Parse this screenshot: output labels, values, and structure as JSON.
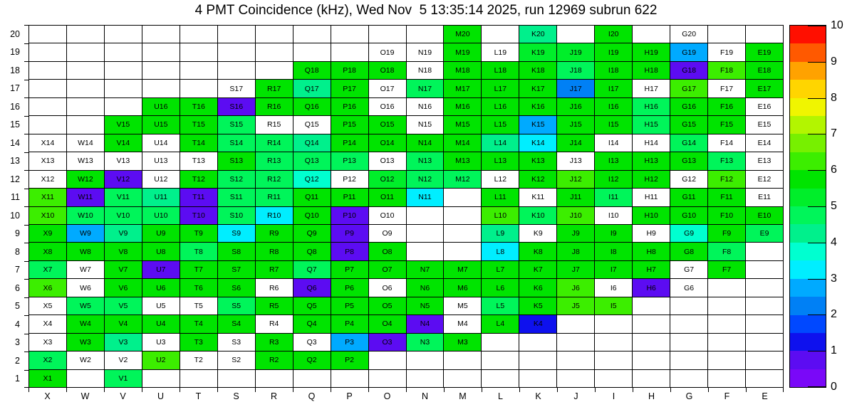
{
  "title": "4 PMT Coincidence (kHz), Wed Nov  5 13:35:14 2025, run 12969 subrun 622",
  "chart_data": {
    "type": "heatmap",
    "unit": "kHz",
    "zlim": [
      0,
      10
    ],
    "colorbar_ticks": [
      0,
      1,
      2,
      3,
      4,
      5,
      6,
      7,
      8,
      9,
      10
    ],
    "palette_note": "20 discrete bands, 0.5 kHz each, violet(0) to red(10)",
    "palette": [
      "#7a08f8",
      "#5c0cf2",
      "#0e11ee",
      "#0048ff",
      "#0080f5",
      "#00aaff",
      "#00eeff",
      "#00ffd0",
      "#00f08c",
      "#00f55a",
      "#00ee2a",
      "#00e400",
      "#3cee00",
      "#77f000",
      "#b3f500",
      "#f0f500",
      "#ffd500",
      "#ffa200",
      "#ff5900",
      "#ff0f00"
    ],
    "columns": [
      "X",
      "W",
      "V",
      "U",
      "T",
      "S",
      "R",
      "Q",
      "P",
      "O",
      "N",
      "M",
      "L",
      "K",
      "J",
      "I",
      "H",
      "G",
      "F",
      "E"
    ],
    "rows": [
      20,
      19,
      18,
      17,
      16,
      15,
      14,
      13,
      12,
      11,
      10,
      9,
      8,
      7,
      6,
      5,
      4,
      3,
      2,
      1
    ],
    "cell_format": "LABEL:VALUE = colored cell (kHz), LABEL = white cell with label, empty string = blank cell",
    "cells": [
      [
        "",
        "",
        "",
        "",
        "",
        "",
        "",
        "",
        "",
        "",
        "",
        "M20:5.75",
        "",
        "K20:4.25",
        "",
        "I20:5.75",
        "",
        "G20",
        "",
        ""
      ],
      [
        "",
        "",
        "",
        "",
        "",
        "",
        "",
        "",
        "",
        "O19",
        "N19",
        "M19:5.75",
        "L19",
        "K19:5.25",
        "J19:5.25",
        "I19:5.75",
        "H19:5.75",
        "G19:2.75",
        "F19",
        "E19:5.75"
      ],
      [
        "",
        "",
        "",
        "",
        "",
        "",
        "",
        "Q18:5.75",
        "P18:5.75",
        "O18:5.75",
        "N18",
        "M18:5.75",
        "L18:5.75",
        "K18:5.75",
        "J18:4.75",
        "I18:5.75",
        "H18:5.75",
        "G18:0.5",
        "F18:6.25",
        "E18:5.75"
      ],
      [
        "",
        "",
        "",
        "",
        "",
        "S17",
        "R17:5.75",
        "Q17:4.25",
        "P17:5.75",
        "O17",
        "N17:4.75",
        "M17:5.75",
        "L17:5.75",
        "K17:5.75",
        "J17:2.25",
        "I17:5.75",
        "H17",
        "G17:6.25",
        "F17",
        "E17:5.75"
      ],
      [
        "",
        "",
        "",
        "U16:5.75",
        "T16:5.75",
        "S16:0.5",
        "R16:5.75",
        "Q16:5.75",
        "P16:5.75",
        "O16",
        "N16",
        "M16:5.75",
        "L16:5.75",
        "K16:5.75",
        "J16:5.75",
        "I16:5.75",
        "H16:4.75",
        "G16:5.75",
        "F16:5.75",
        "E16"
      ],
      [
        "",
        "",
        "V15:5.75",
        "U15:5.75",
        "T15:5.75",
        "S15:4.75",
        "R15",
        "Q15",
        "P15:5.75",
        "O15:5.75",
        "N15",
        "M15:5.75",
        "L15:5.75",
        "K15:2.75",
        "J15:5.75",
        "I15:5.75",
        "H15:4.75",
        "G15:5.75",
        "F15:5.75",
        "E15"
      ],
      [
        "X14",
        "W14",
        "V14:5.75",
        "U14",
        "T14:5.75",
        "S14:4.75",
        "R14:4.75",
        "Q14:4.25",
        "P14:5.75",
        "O14:5.75",
        "N14:5.75",
        "M14:5.75",
        "L14:4.25",
        "K14:3.25",
        "J14:5.75",
        "I14",
        "H14",
        "G14:4.75",
        "F14",
        "E14"
      ],
      [
        "X13",
        "W13",
        "V13",
        "U13",
        "T13",
        "S13:5.75",
        "R13:4.75",
        "Q13:4.75",
        "P13:4.75",
        "O13",
        "N13:4.75",
        "M13:5.75",
        "L13:5.75",
        "K13:5.75",
        "J13",
        "I13:5.75",
        "H13:5.75",
        "G13:5.75",
        "F13:4.75",
        "E13"
      ],
      [
        "X12",
        "W12:5.75",
        "V12:0.5",
        "U12",
        "T12:5.75",
        "S12:4.75",
        "R12:4.75",
        "Q12:3.75",
        "P12",
        "O12:5.25",
        "N12:4.75",
        "M12:4.75",
        "L12",
        "K12:5.75",
        "J12:6.25",
        "I12:5.75",
        "H12:5.75",
        "G12",
        "F12:6.25",
        "E12"
      ],
      [
        "X11:6.25",
        "W11:0.5",
        "V11:4.75",
        "U11:4.25",
        "T11:0.5",
        "S11:4.75",
        "R11:4.75",
        "Q11:5.75",
        "P11:5.75",
        "O11:5.75",
        "N11:3.25",
        "",
        "L11:5.75",
        "K11",
        "J11:5.75",
        "I11:4.75",
        "H11",
        "G11:5.75",
        "F11:5.75",
        "E11"
      ],
      [
        "X10:6.25",
        "W10:4.75",
        "V10:4.75",
        "U10:4.75",
        "T10:0.5",
        "S10:4.75",
        "R10:3.25",
        "Q10:5.75",
        "P10:0.5",
        "O10",
        "",
        "",
        "L10:6.25",
        "K10:4.75",
        "J10:6.25",
        "I10",
        "H10:5.75",
        "G10:5.75",
        "F10:5.75",
        "E10:5.75"
      ],
      [
        "X9:5.75",
        "W9:2.75",
        "V9:4.25",
        "U9:5.75",
        "T9:5.75",
        "S9:3.25",
        "R9:5.75",
        "Q9:5.75",
        "P9:0.5",
        "O9",
        "",
        "",
        "L9:4.25",
        "K9",
        "J9:5.75",
        "I9:5.75",
        "H9",
        "G9:3.75",
        "F9:5.75",
        "E9:4.75"
      ],
      [
        "X8:5.75",
        "W8:5.75",
        "V8:5.75",
        "U8:5.75",
        "T8:4.75",
        "S8:5.75",
        "R8:5.75",
        "Q8:5.75",
        "P8:0.5",
        "O8:5.75",
        "",
        "",
        "L8:3.25",
        "K8:5.75",
        "J8:5.75",
        "I8:5.75",
        "H8:5.75",
        "G8:5.75",
        "F8:4.75",
        ""
      ],
      [
        "X7:4.75",
        "W7",
        "V7:5.75",
        "U7:0.5",
        "T7:5.75",
        "S7:5.75",
        "R7:5.75",
        "Q7:4.75",
        "P7:5.75",
        "O7:5.75",
        "N7:5.75",
        "M7:5.75",
        "L7:5.75",
        "K7:5.75",
        "J7:5.75",
        "I7:5.75",
        "H7:5.75",
        "G7",
        "F7:5.75",
        ""
      ],
      [
        "X6:6.25",
        "W6",
        "V6:5.75",
        "U6:5.75",
        "T6:5.75",
        "S6:5.75",
        "R6",
        "Q6:0.5",
        "P6:5.75",
        "O6",
        "N6:5.75",
        "M6:5.75",
        "L6:5.75",
        "K6:5.75",
        "J6:6.25",
        "I6",
        "H6:0.5",
        "G6",
        "",
        ""
      ],
      [
        "X5",
        "W5:4.75",
        "V5:4.75",
        "U5",
        "T5",
        "S5:4.75",
        "R5:5.75",
        "Q5:5.75",
        "P5:5.75",
        "O5:5.75",
        "N5:5.75",
        "M5",
        "L5:4.75",
        "K5:5.75",
        "J5:6.25",
        "I5:6.25",
        "",
        "",
        "",
        ""
      ],
      [
        "X4",
        "W4:5.75",
        "V4:5.75",
        "U4:5.75",
        "T4:5.75",
        "S4:5.75",
        "R4",
        "Q4:5.75",
        "P4:5.75",
        "O4:5.75",
        "N4:0.5",
        "M4",
        "L4:5.75",
        "K4:1.25",
        "",
        "",
        "",
        "",
        "",
        ""
      ],
      [
        "X3",
        "W3:5.75",
        "V3:4.25",
        "U3",
        "T3:5.75",
        "S3",
        "R3:5.75",
        "Q3",
        "P3:2.75",
        "O3:0.5",
        "N3:4.75",
        "M3:5.75",
        "",
        "",
        "",
        "",
        "",
        "",
        "",
        ""
      ],
      [
        "X2:4.75",
        "W2",
        "V2",
        "U2:6.25",
        "T2",
        "S2",
        "R2:5.75",
        "Q2:5.75",
        "P2:5.75",
        "",
        "",
        "",
        "",
        "",
        "",
        "",
        "",
        "",
        "",
        ""
      ],
      [
        "X1:5.75",
        "",
        "V1:4.75",
        "",
        "",
        "",
        "",
        "",
        "",
        "",
        "",
        "",
        "",
        "",
        "",
        "",
        "",
        "",
        "",
        ""
      ]
    ]
  }
}
